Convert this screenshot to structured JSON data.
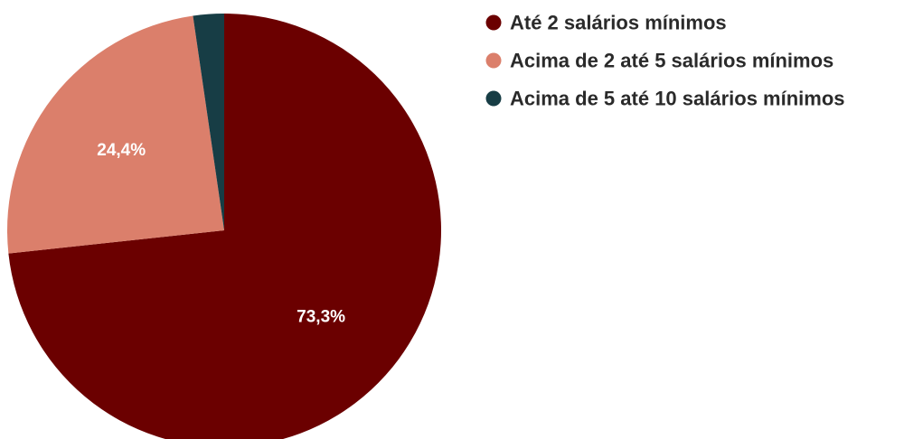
{
  "chart_data": {
    "type": "pie",
    "title": "",
    "slices": [
      {
        "name": "Até 2 salários mínimos",
        "value": 73.3,
        "label": "73,3%",
        "color": "#6b0000"
      },
      {
        "name": "Acima de 2 até 5 salários mínimos",
        "value": 24.4,
        "label": "24,4%",
        "color": "#db7f6b"
      },
      {
        "name": "Acima de 5 até 10 salários mínimos",
        "value": 2.3,
        "label": "",
        "color": "#173d45"
      }
    ],
    "start_angle": "12 o'clock",
    "direction": "clockwise",
    "legend_position": "top-right"
  }
}
